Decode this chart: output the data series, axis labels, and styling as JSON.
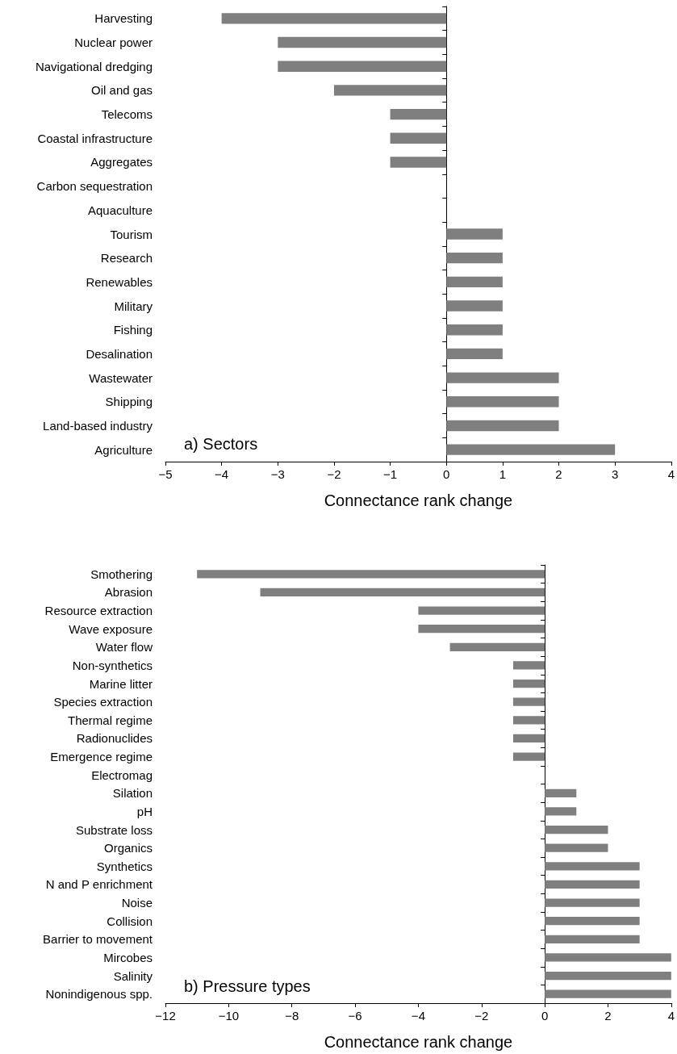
{
  "chart_data": [
    {
      "type": "bar",
      "orientation": "horizontal",
      "xlabel": "Connectance rank change",
      "annotations": [
        "a) Sectors"
      ],
      "categories": [
        "Harvesting",
        "Nuclear power",
        "Navigational dredging",
        "Oil and gas",
        "Telecoms",
        "Coastal infrastructure",
        "Aggregates",
        "Carbon sequestration",
        "Aquaculture",
        "Tourism",
        "Research",
        "Renewables",
        "Military",
        "Fishing",
        "Desalination",
        "Wastewater",
        "Shipping",
        "Land-based industry",
        "Agriculture"
      ],
      "values": [
        -4,
        -3,
        -3,
        -2,
        -1,
        -1,
        -1,
        0,
        0,
        1,
        1,
        1,
        1,
        1,
        1,
        2,
        2,
        2,
        3
      ],
      "color": "#7f7f7f",
      "xlim": [
        -5,
        4
      ],
      "xticks": [
        -5,
        -4,
        -3,
        -2,
        -1,
        0,
        1,
        2,
        3,
        4
      ]
    },
    {
      "type": "bar",
      "orientation": "horizontal",
      "xlabel": "Connectance rank change",
      "annotations": [
        "b) Pressure types"
      ],
      "categories": [
        "Smothering",
        "Abrasion",
        "Resource extraction",
        "Wave exposure",
        "Water flow",
        "Non-synthetics",
        "Marine litter",
        "Species extraction",
        "Thermal regime",
        "Radionuclides",
        "Emergence regime",
        "Electromag",
        "Silation",
        "pH",
        "Substrate loss",
        "Organics",
        "Synthetics",
        "N and P enrichment",
        "Noise",
        "Collision",
        "Barrier to movement",
        "Mircobes",
        "Salinity",
        "Nonindigenous spp."
      ],
      "values": [
        -11,
        -9,
        -4,
        -4,
        -3,
        -1,
        -1,
        -1,
        -1,
        -1,
        -1,
        0,
        1,
        1,
        2,
        2,
        3,
        3,
        3,
        3,
        3,
        4,
        4,
        4
      ],
      "color": "#7f7f7f",
      "xlim": [
        -12,
        4
      ],
      "xticks": [
        -12,
        -10,
        -8,
        -6,
        -4,
        -2,
        0,
        2,
        4
      ]
    }
  ]
}
